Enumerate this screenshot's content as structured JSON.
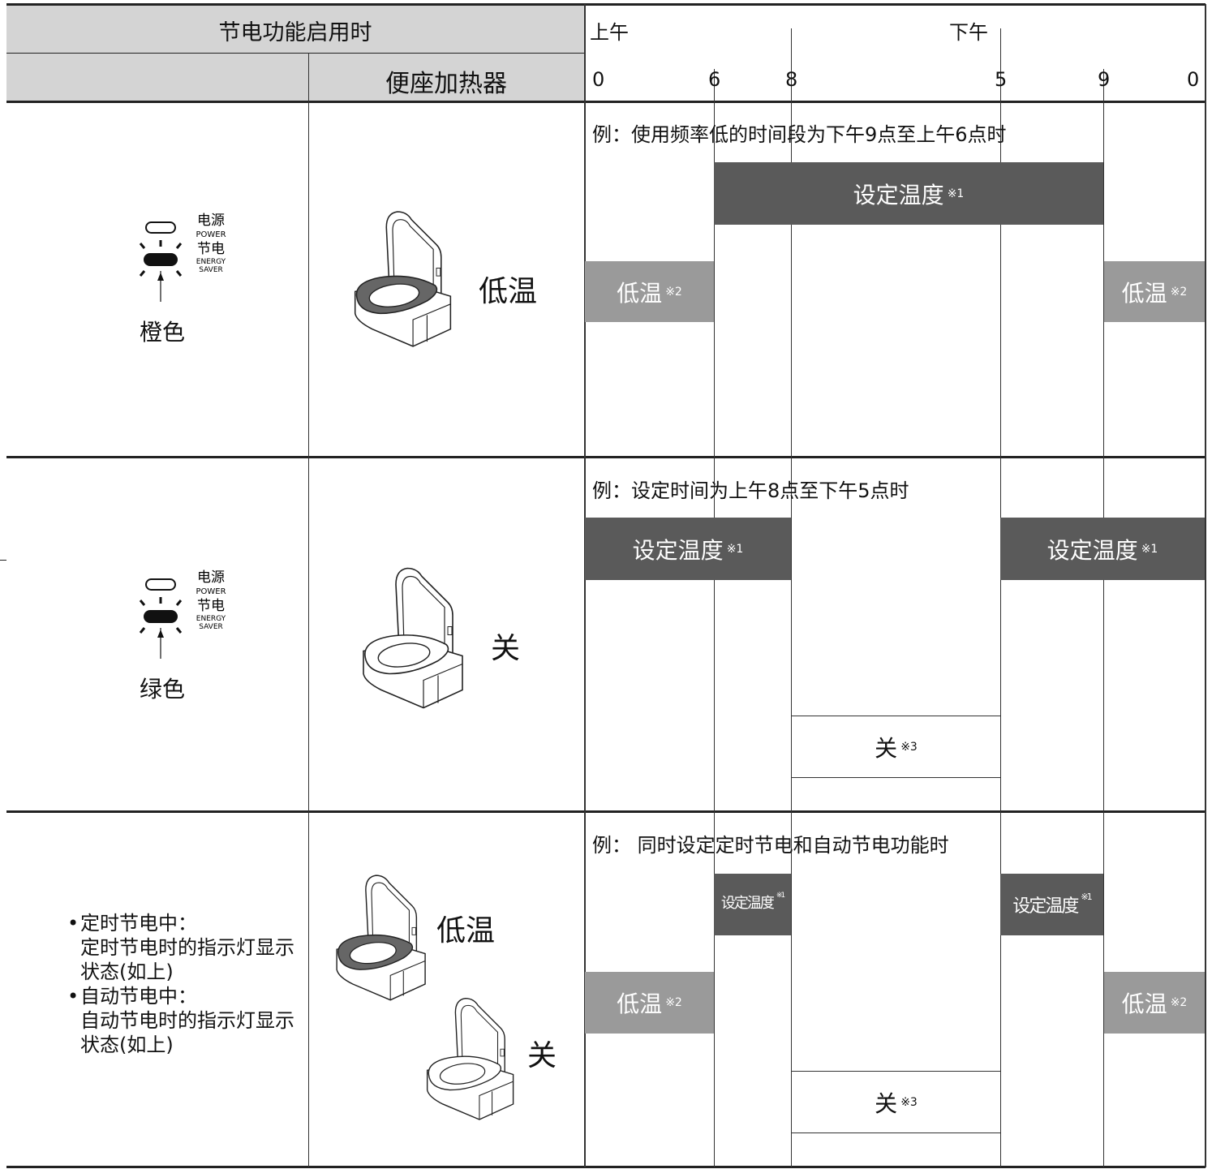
{
  "header": {
    "title": "节电功能启用时",
    "am": "上午",
    "pm": "下午",
    "heater": "便座加热器",
    "hours": [
      0,
      6,
      8,
      5,
      9,
      0
    ]
  },
  "indicator": {
    "power": "电源",
    "power_en": "POWER",
    "saver": "节电",
    "saver_en": [
      "ENERGY",
      "SAVER"
    ]
  },
  "rows": [
    {
      "lamp": "橙色",
      "heater": [
        "低温"
      ],
      "example": "例：使用频率低的时间段为下午9点至上午6点时",
      "bars": [
        {
          "label": "设定温度",
          "note": "※1"
        },
        {
          "label": "低温",
          "note": "※2"
        },
        {
          "label": "低温",
          "note": "※2"
        }
      ]
    },
    {
      "lamp": "绿色",
      "heater": [
        "关"
      ],
      "example": "例：设定时间为上午8点至下午5点时",
      "bars": [
        {
          "label": "设定温度",
          "note": "※1"
        },
        {
          "label": "设定温度",
          "note": "※1"
        },
        {
          "label": "关",
          "note": "※3"
        }
      ]
    },
    {
      "lamp_items": [
        {
          "title": "定时节电中：",
          "text": "定时节电时的指示灯显示状态(如上)"
        },
        {
          "title": "自动节电中：",
          "text": "自动节电时的指示灯显示状态(如上)"
        }
      ],
      "heater": [
        "低温",
        "关"
      ],
      "example": "例： 同时设定定时节电和自动节电功能时",
      "bars": [
        {
          "label": "设定温度",
          "note": "※1"
        },
        {
          "label": "设定温度",
          "note": "※1"
        },
        {
          "label": "低温",
          "note": "※2"
        },
        {
          "label": "低温",
          "note": "※2"
        },
        {
          "label": "关",
          "note": "※3"
        }
      ]
    }
  ]
}
